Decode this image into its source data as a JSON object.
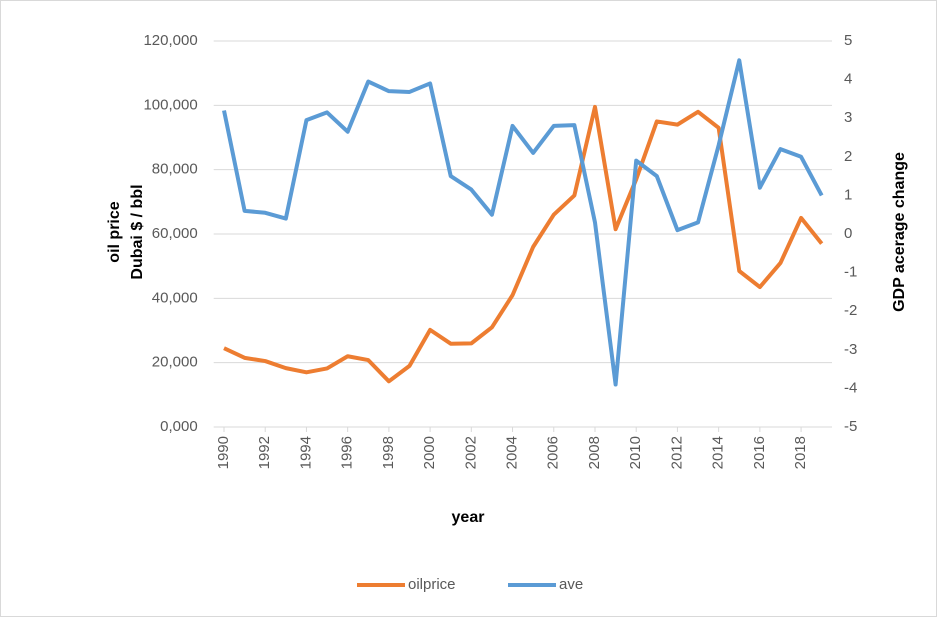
{
  "chart_data": {
    "type": "line",
    "x": [
      1990,
      1991,
      1992,
      1993,
      1994,
      1995,
      1996,
      1997,
      1998,
      1999,
      2000,
      2001,
      2002,
      2003,
      2004,
      2005,
      2006,
      2007,
      2008,
      2009,
      2010,
      2011,
      2012,
      2013,
      2014,
      2015,
      2016,
      2017,
      2018,
      2019
    ],
    "xlim": [
      1989.5,
      2019.5
    ],
    "xticks": [
      1990,
      1992,
      1994,
      1996,
      1998,
      2000,
      2002,
      2004,
      2006,
      2008,
      2010,
      2012,
      2014,
      2016,
      2018
    ],
    "x_label": "year",
    "y_label": [
      "oil price",
      "Dubai $ / bbl"
    ],
    "y2_label": "GDP acerage change",
    "ylim": [
      0,
      120000
    ],
    "yticks": [
      {
        "value": 0,
        "label": "0,000"
      },
      {
        "value": 20000,
        "label": "20,000"
      },
      {
        "value": 40000,
        "label": "40,000"
      },
      {
        "value": 60000,
        "label": "60,000"
      },
      {
        "value": 80000,
        "label": "80,000"
      },
      {
        "value": 100000,
        "label": "100,000"
      },
      {
        "value": 120000,
        "label": "120,000"
      }
    ],
    "y2lim": [
      -5,
      5
    ],
    "y2ticks": [
      -5,
      -4,
      -3,
      -2,
      -1,
      0,
      1,
      2,
      3,
      4,
      5
    ],
    "grid": true,
    "legend": "bottom",
    "series": [
      {
        "name": "oilprice",
        "color": "#ed7d31",
        "values": [
          24500,
          21500,
          20500,
          18300,
          17000,
          18200,
          22000,
          20800,
          14200,
          19000,
          30200,
          25900,
          26000,
          31000,
          41000,
          56000,
          66000,
          72000,
          99500,
          61500,
          77000,
          95000,
          94000,
          98000,
          93000,
          48500,
          43500,
          51000,
          65000,
          57000
        ]
      },
      {
        "name": "ave",
        "color": "#5b9bd5",
        "axis": "y2",
        "values": [
          3.2,
          0.6,
          0.55,
          0.4,
          2.95,
          3.15,
          2.65,
          3.95,
          3.7,
          3.68,
          3.9,
          1.5,
          1.15,
          0.5,
          2.8,
          2.1,
          2.8,
          2.82,
          0.3,
          -3.9,
          1.9,
          1.5,
          0.1,
          0.3,
          2.3,
          4.5,
          1.2,
          2.2,
          2.0,
          1.0
        ]
      }
    ]
  }
}
